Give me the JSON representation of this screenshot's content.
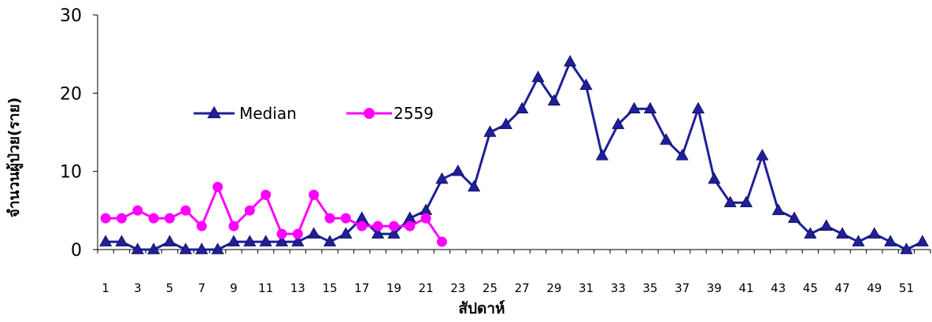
{
  "chart_data": {
    "type": "line",
    "xlabel": "สัปดาห์",
    "ylabel": "จำนวนผู้ป่วย(ราย)",
    "ylim": [
      0,
      30
    ],
    "yticks": [
      0,
      10,
      20,
      30
    ],
    "xlim": [
      1,
      52
    ],
    "x_tick_labels": [
      "1",
      "3",
      "5",
      "7",
      "9",
      "11",
      "13",
      "15",
      "17",
      "19",
      "21",
      "23",
      "25",
      "27",
      "29",
      "31",
      "33",
      "35",
      "37",
      "39",
      "41",
      "43",
      "45",
      "47",
      "49",
      "51"
    ],
    "legend_position": "upper-left inside plot",
    "grid": false,
    "series": [
      {
        "name": "Median",
        "color": "#1f1f99",
        "marker": "triangle",
        "x": [
          1,
          2,
          3,
          4,
          5,
          6,
          7,
          8,
          9,
          10,
          11,
          12,
          13,
          14,
          15,
          16,
          17,
          18,
          19,
          20,
          21,
          22,
          23,
          24,
          25,
          26,
          27,
          28,
          29,
          30,
          31,
          32,
          33,
          34,
          35,
          36,
          37,
          38,
          39,
          40,
          41,
          42,
          43,
          44,
          45,
          46,
          47,
          48,
          49,
          50,
          51,
          52
        ],
        "values": [
          1,
          1,
          0,
          0,
          1,
          0,
          0,
          0,
          1,
          1,
          1,
          1,
          1,
          2,
          1,
          2,
          4,
          2,
          2,
          4,
          5,
          9,
          10,
          8,
          15,
          16,
          18,
          22,
          19,
          24,
          21,
          12,
          16,
          18,
          18,
          14,
          12,
          18,
          9,
          6,
          6,
          12,
          5,
          4,
          2,
          3,
          2,
          1,
          2,
          1,
          0,
          1
        ]
      },
      {
        "name": "2559",
        "color": "#ff00ff",
        "marker": "circle",
        "x": [
          1,
          2,
          3,
          4,
          5,
          6,
          7,
          8,
          9,
          10,
          11,
          12,
          13,
          14,
          15,
          16,
          17,
          18,
          19,
          20,
          21,
          22
        ],
        "values": [
          4,
          4,
          5,
          4,
          4,
          5,
          3,
          8,
          3,
          5,
          7,
          2,
          2,
          7,
          4,
          4,
          3,
          3,
          3,
          3,
          4,
          1
        ]
      }
    ]
  }
}
